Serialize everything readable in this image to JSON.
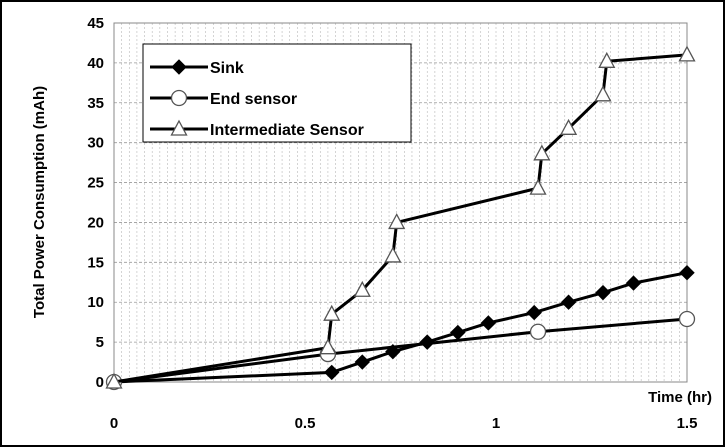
{
  "chart_data": {
    "type": "line",
    "title": "",
    "xlabel": "Time (hr)",
    "ylabel": "Total Power Consumption  (mAh)",
    "xlim": [
      0,
      1.5
    ],
    "ylim": [
      0,
      45
    ],
    "x_ticks": [
      "0",
      "0.5",
      "1",
      "1.5"
    ],
    "y_ticks": [
      "0",
      "5",
      "10",
      "15",
      "20",
      "25",
      "30",
      "35",
      "40",
      "45"
    ],
    "grid": true,
    "legend_position": "top-left",
    "series": [
      {
        "name": "Sink",
        "marker": "diamond",
        "color": "#000000",
        "points": [
          [
            0,
            0
          ],
          [
            0.57,
            1.2
          ],
          [
            0.65,
            2.5
          ],
          [
            0.73,
            3.8
          ],
          [
            0.82,
            5.0
          ],
          [
            0.9,
            6.2
          ],
          [
            0.98,
            7.4
          ],
          [
            1.1,
            8.7
          ],
          [
            1.19,
            10.0
          ],
          [
            1.28,
            11.2
          ],
          [
            1.36,
            12.4
          ],
          [
            1.5,
            13.7
          ]
        ]
      },
      {
        "name": "End sensor",
        "marker": "circle",
        "color": "#000000",
        "points": [
          [
            0,
            0
          ],
          [
            0.56,
            3.5
          ],
          [
            1.11,
            6.3
          ],
          [
            1.5,
            7.9
          ]
        ]
      },
      {
        "name": "Intermediate Sensor",
        "marker": "triangle",
        "color": "#000000",
        "points": [
          [
            0,
            0
          ],
          [
            0.56,
            4.3
          ],
          [
            0.57,
            8.5
          ],
          [
            0.65,
            11.5
          ],
          [
            0.73,
            15.8
          ],
          [
            0.74,
            20.0
          ],
          [
            1.11,
            24.3
          ],
          [
            1.12,
            28.6
          ],
          [
            1.19,
            31.8
          ],
          [
            1.28,
            36.0
          ],
          [
            1.29,
            40.2
          ],
          [
            1.5,
            41.0
          ]
        ]
      }
    ]
  }
}
